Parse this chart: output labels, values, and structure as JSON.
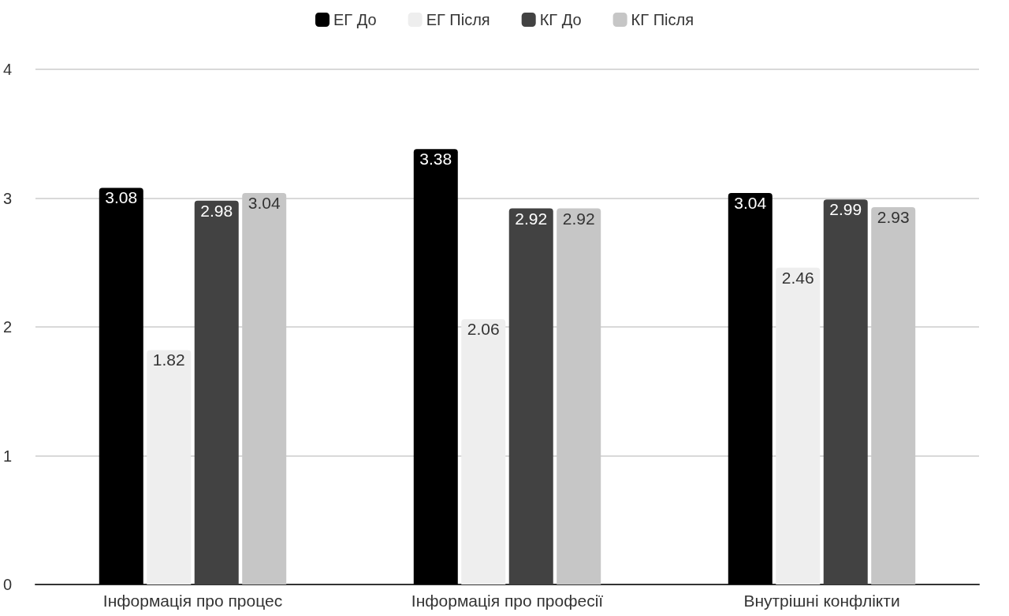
{
  "chart_data": {
    "type": "bar",
    "categories": [
      "Інформація про процес",
      "Інформація про професії",
      "Внутрішні конфлікти"
    ],
    "series": [
      {
        "name": "ЕГ До",
        "color": "#000000",
        "values": [
          3.08,
          3.38,
          3.04
        ]
      },
      {
        "name": "ЕГ Після",
        "color": "#eeeeee",
        "values": [
          1.82,
          2.06,
          2.46
        ]
      },
      {
        "name": "КГ До",
        "color": "#424242",
        "values": [
          2.98,
          2.92,
          2.99
        ]
      },
      {
        "name": "КГ Після",
        "color": "#c6c6c6",
        "values": [
          3.04,
          2.92,
          2.93
        ]
      }
    ],
    "ylim": [
      0,
      4
    ],
    "yticks": [
      0,
      1,
      2,
      3,
      4
    ],
    "grid": "y",
    "legend": "top",
    "data_labels": true
  }
}
